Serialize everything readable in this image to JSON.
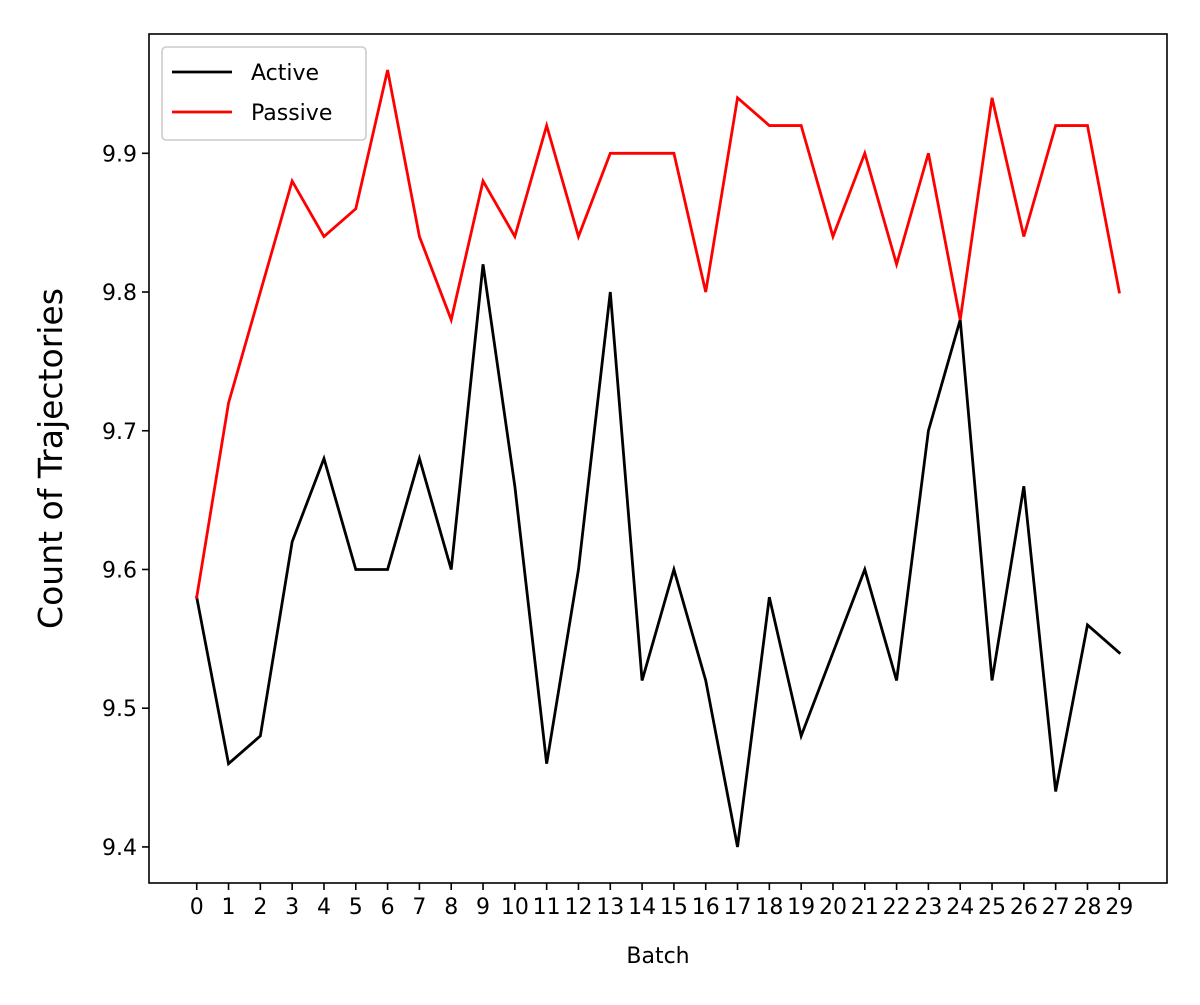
{
  "chart_data": {
    "type": "line",
    "title": "",
    "xlabel": "Batch",
    "ylabel": "Count of Trajectories",
    "x": [
      0,
      1,
      2,
      3,
      4,
      5,
      6,
      7,
      8,
      9,
      10,
      11,
      12,
      13,
      14,
      15,
      16,
      17,
      18,
      19,
      20,
      21,
      22,
      23,
      24,
      25,
      26,
      27,
      28,
      29
    ],
    "xlim": [
      -1.5,
      30.5
    ],
    "ylim": [
      9.374,
      9.986
    ],
    "yticks": [
      9.4,
      9.5,
      9.6,
      9.7,
      9.8,
      9.9
    ],
    "grid": false,
    "legend_position": "top-left",
    "series": [
      {
        "name": "Active",
        "color": "#000000",
        "values": [
          9.58,
          9.46,
          9.48,
          9.62,
          9.68,
          9.6,
          9.6,
          9.68,
          9.6,
          9.82,
          9.66,
          9.46,
          9.6,
          9.8,
          9.52,
          9.6,
          9.52,
          9.4,
          9.58,
          9.48,
          9.54,
          9.6,
          9.52,
          9.7,
          9.78,
          9.52,
          9.66,
          9.44,
          9.56,
          9.54
        ]
      },
      {
        "name": "Passive",
        "color": "#ff0000",
        "values": [
          9.58,
          9.72,
          9.8,
          9.88,
          9.84,
          9.86,
          9.96,
          9.84,
          9.78,
          9.88,
          9.84,
          9.92,
          9.84,
          9.9,
          9.9,
          9.9,
          9.8,
          9.94,
          9.92,
          9.92,
          9.84,
          9.9,
          9.82,
          9.9,
          9.78,
          9.94,
          9.84,
          9.92,
          9.92,
          9.8
        ]
      }
    ]
  }
}
